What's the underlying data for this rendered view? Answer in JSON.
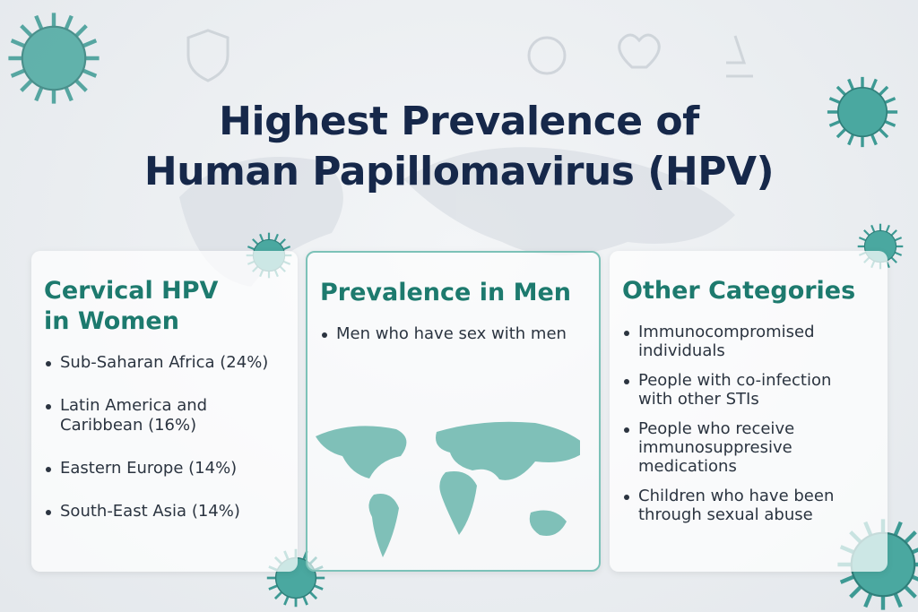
{
  "header": {
    "title_lines": [
      "Highest Prevalence of",
      "Human Papillomavirus (HPV)"
    ]
  },
  "cards": [
    {
      "heading": "Cervical HPV in Women",
      "items": [
        "Sub-Saharan Africa (24%)",
        "Latin America and Caribbean (16%)",
        "Eastern Europe (14%)",
        "South-East Asia (14%)"
      ]
    },
    {
      "heading": "Prevalence in Men",
      "items": [
        "Men who have sex with men"
      ]
    },
    {
      "heading": "Other Categories",
      "items": [
        "Immunocompromised individuals",
        "People with co-infection with other STIs",
        "People who receive immunosuppresive medications",
        "Children who have been through sexual abuse"
      ]
    }
  ]
}
